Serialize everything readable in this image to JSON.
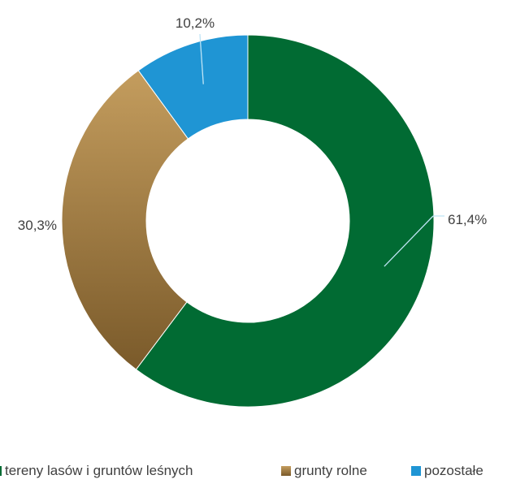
{
  "chart_data": {
    "type": "pie",
    "donut": true,
    "categories": [
      "tereny lasów i gruntów leśnych",
      "grunty rolne",
      "pozostałe"
    ],
    "values": [
      61.4,
      30.3,
      10.2
    ],
    "data_labels": [
      "61,4%",
      "30,3%",
      "10,2%"
    ],
    "unit": "%",
    "legend_position": "bottom",
    "colors": [
      "#016b33",
      "#b08a4a",
      "#1f95d4"
    ],
    "title": ""
  },
  "legend": {
    "items": [
      {
        "label": "tereny lasów i gruntów leśnych",
        "color": "#016b33"
      },
      {
        "label": "grunty rolne",
        "color": "#b08a4a"
      },
      {
        "label": "pozostałe",
        "color": "#1f95d4"
      }
    ]
  }
}
